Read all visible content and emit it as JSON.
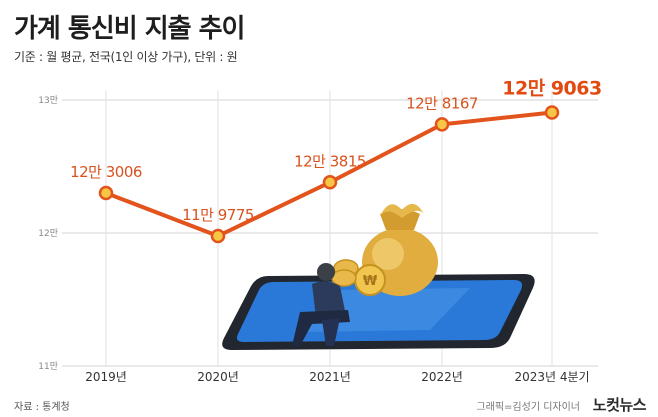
{
  "title": "가계 통신비 지출 추이",
  "subtitle": "기준 : 월 평균, 전국(1인 이상 가구), 단위 : 원",
  "source": "자료 : 통계청",
  "credit": "그래픽=김성기 디자이너",
  "brand": "노컷뉴스",
  "colors": {
    "line": "#e2541c",
    "marker_fill": "#f6c744",
    "label": "#d9531e",
    "highlight_label": "#e24a12",
    "grid": "#d3d3d3"
  },
  "chart_data": {
    "type": "line",
    "categories": [
      "2019년",
      "2020년",
      "2021년",
      "2022년",
      "2023년 4분기"
    ],
    "values": [
      123006,
      119775,
      123815,
      128167,
      129063
    ],
    "data_labels": [
      "12만 3006",
      "11만 9775",
      "12만 3815",
      "12만 8167",
      "12만 9063"
    ],
    "y_ticks": [
      110000,
      120000,
      130000
    ],
    "y_tick_labels": [
      "11만",
      "12만",
      "13만"
    ],
    "ylim": [
      110000,
      130000
    ],
    "grid": true,
    "xlabel": "",
    "ylabel": ""
  }
}
